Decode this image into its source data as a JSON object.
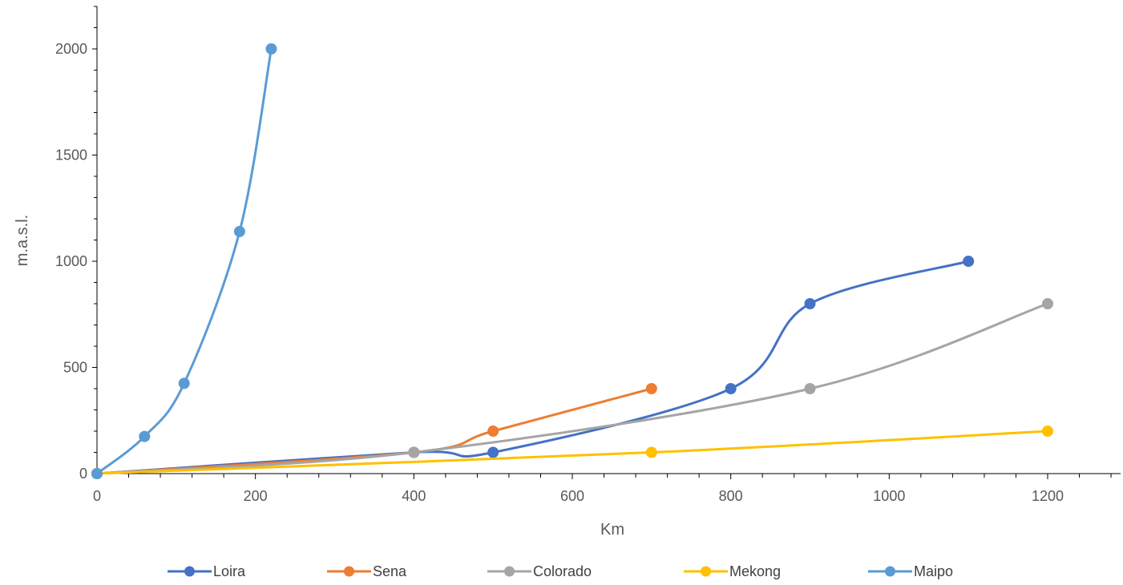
{
  "chart_data": {
    "type": "line",
    "xlabel": "Km",
    "ylabel": "m.a.s.l.",
    "xlim": [
      0,
      1300
    ],
    "ylim": [
      0,
      2000
    ],
    "x_ticks": [
      0,
      200,
      400,
      600,
      800,
      1000,
      1200
    ],
    "y_ticks": [
      0,
      500,
      1000,
      1500,
      2000
    ],
    "grid": false,
    "legend_position": "bottom",
    "smoothed": true,
    "series": [
      {
        "name": "Loira",
        "color": "#4472C4",
        "points": [
          [
            0,
            0
          ],
          [
            400,
            100
          ],
          [
            500,
            100
          ],
          [
            800,
            400
          ],
          [
            900,
            800
          ],
          [
            1100,
            1000
          ]
        ]
      },
      {
        "name": "Sena",
        "color": "#ED7D31",
        "points": [
          [
            0,
            0
          ],
          [
            400,
            100
          ],
          [
            500,
            200
          ],
          [
            700,
            400
          ]
        ]
      },
      {
        "name": "Colorado",
        "color": "#A5A5A5",
        "points": [
          [
            0,
            0
          ],
          [
            400,
            100
          ],
          [
            900,
            400
          ],
          [
            1200,
            800
          ]
        ]
      },
      {
        "name": "Mekong",
        "color": "#FFC000",
        "points": [
          [
            0,
            0
          ],
          [
            700,
            100
          ],
          [
            1200,
            200
          ]
        ]
      },
      {
        "name": "Maipo",
        "color": "#5B9BD5",
        "points": [
          [
            0,
            0
          ],
          [
            60,
            175
          ],
          [
            110,
            425
          ],
          [
            180,
            1140
          ],
          [
            220,
            2000
          ]
        ]
      }
    ]
  }
}
